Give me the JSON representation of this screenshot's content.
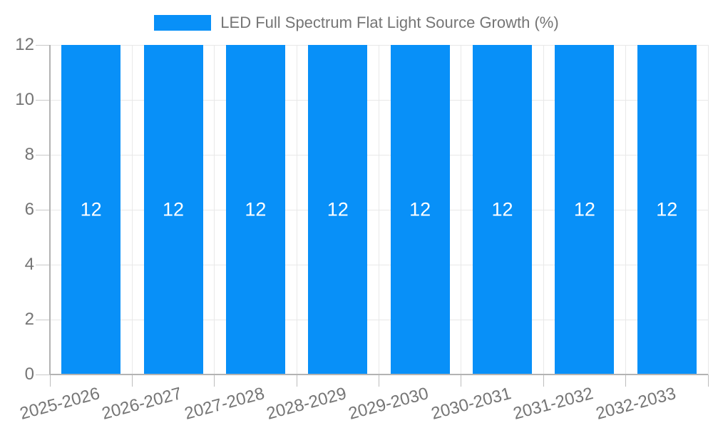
{
  "chart": {
    "accent_color": "#0890f8",
    "background_color": "#ffffff",
    "text_color": "#757575"
  },
  "chart_data": {
    "type": "bar",
    "title": "LED Full Spectrum Flat Light Source Growth (%)",
    "categories": [
      "2025-2026",
      "2026-2027",
      "2027-2028",
      "2028-2029",
      "2029-2030",
      "2030-2031",
      "2031-2032",
      "2032-2033"
    ],
    "values": [
      12,
      12,
      12,
      12,
      12,
      12,
      12,
      12
    ],
    "bar_labels": [
      "12",
      "12",
      "12",
      "12",
      "12",
      "12",
      "12",
      "12"
    ],
    "xlabel": "",
    "ylabel": "",
    "ylim": [
      0,
      12
    ],
    "yticks": [
      0,
      2,
      4,
      6,
      8,
      10,
      12
    ],
    "grid": true,
    "legend_position": "top",
    "bar_color": "#0890f8",
    "bar_label_color": "#ffffff",
    "gridline_color": "#e8e8e8",
    "axis_line_color": "#b3b3b3"
  }
}
